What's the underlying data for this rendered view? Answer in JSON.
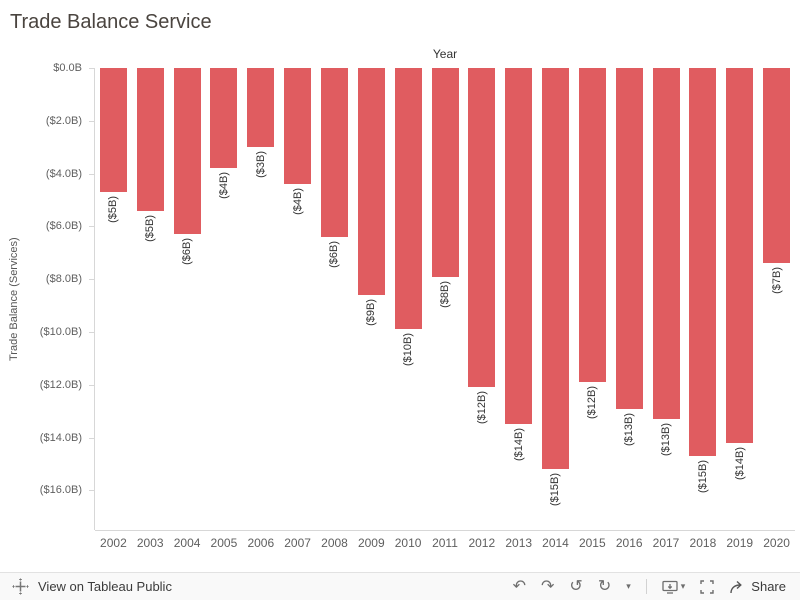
{
  "chart_data": {
    "type": "bar",
    "title": "Trade Balance Service",
    "column_header": "Year",
    "xlabel": "Year",
    "ylabel": "Trade Balance (Services)",
    "categories": [
      "2002",
      "2003",
      "2004",
      "2005",
      "2006",
      "2007",
      "2008",
      "2009",
      "2010",
      "2011",
      "2012",
      "2013",
      "2014",
      "2015",
      "2016",
      "2017",
      "2018",
      "2019",
      "2020"
    ],
    "values": [
      -4.7,
      -5.4,
      -6.3,
      -3.8,
      -3.0,
      -4.4,
      -6.4,
      -8.6,
      -9.9,
      -7.9,
      -12.1,
      -13.5,
      -15.2,
      -11.9,
      -12.9,
      -13.3,
      -14.7,
      -14.2,
      -7.4
    ],
    "bar_labels": [
      "($5B)",
      "($5B)",
      "($6B)",
      "($4B)",
      "($3B)",
      "($4B)",
      "($6B)",
      "($9B)",
      "($10B)",
      "($8B)",
      "($12B)",
      "($14B)",
      "($15B)",
      "($12B)",
      "($13B)",
      "($13B)",
      "($15B)",
      "($14B)",
      "($7B)"
    ],
    "y_ticks": [
      {
        "label": "$0.0B",
        "value": 0
      },
      {
        "label": "($2.0B)",
        "value": -2
      },
      {
        "label": "($4.0B)",
        "value": -4
      },
      {
        "label": "($6.0B)",
        "value": -6
      },
      {
        "label": "($8.0B)",
        "value": -8
      },
      {
        "label": "($10.0B)",
        "value": -10
      },
      {
        "label": "($12.0B)",
        "value": -12
      },
      {
        "label": "($14.0B)",
        "value": -14
      },
      {
        "label": "($16.0B)",
        "value": -16
      }
    ],
    "ylim": [
      -17.5,
      0
    ],
    "bar_color": "#e05c60",
    "grid": false,
    "legend_position": "none"
  },
  "toolbar": {
    "view_on_label": "View on Tableau Public",
    "share_label": "Share",
    "icons": {
      "undo": "↶",
      "redo": "↷",
      "replay": "↺",
      "refresh": "↻",
      "caret": "▾"
    }
  }
}
